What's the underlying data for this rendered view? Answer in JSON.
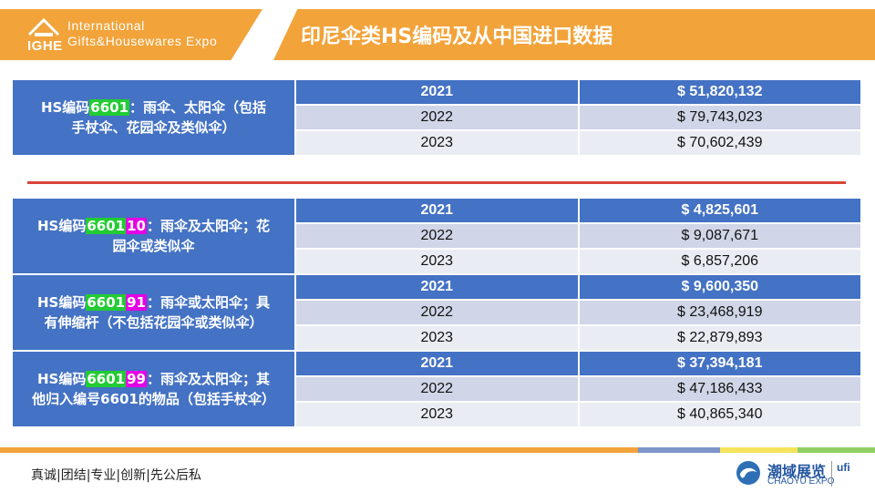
{
  "header": {
    "logo_abbr": "IGHE",
    "logo_line1": "International",
    "logo_line2": "Gifts&Housewares Expo",
    "title": "印尼伞类HS编码及从中国进口数据",
    "accent_color": "#f2a33a"
  },
  "groups": [
    {
      "desc_prefix": "HS编码",
      "code_green": "6601",
      "code_magenta": "",
      "desc_rest_line1": "：雨伞、太阳伞（包括",
      "desc_rest_line2": "手杖伞、花园伞及类似伞）",
      "rows": [
        {
          "year": "2021",
          "currency": "$",
          "amount": "51,820,132"
        },
        {
          "year": "2022",
          "currency": "$",
          "amount": "79,743,023"
        },
        {
          "year": "2023",
          "currency": "$",
          "amount": "70,602,439"
        }
      ]
    },
    {
      "desc_prefix": "HS编码",
      "code_green": "6601",
      "code_magenta": "10",
      "desc_rest_line1": "：雨伞及太阳伞；花",
      "desc_rest_line2": "园伞或类似伞",
      "rows": [
        {
          "year": "2021",
          "currency": "$",
          "amount": "4,825,601"
        },
        {
          "year": "2022",
          "currency": "$",
          "amount": "9,087,671"
        },
        {
          "year": "2023",
          "currency": "$",
          "amount": "6,857,206"
        }
      ]
    },
    {
      "desc_prefix": "HS编码",
      "code_green": "6601",
      "code_magenta": "91",
      "desc_rest_line1": "：雨伞或太阳伞；具",
      "desc_rest_line2": "有伸缩杆（不包括花园伞或类似伞）",
      "rows": [
        {
          "year": "2021",
          "currency": "$",
          "amount": "9,600,350"
        },
        {
          "year": "2022",
          "currency": "$",
          "amount": "23,468,919"
        },
        {
          "year": "2023",
          "currency": "$",
          "amount": "22,879,893"
        }
      ]
    },
    {
      "desc_prefix": "HS编码",
      "code_green": "6601",
      "code_magenta": "99",
      "desc_rest_line1": "：雨伞及太阳伞；其",
      "desc_rest_line2": "他归入编号6601的物品（包括手杖伞）",
      "rows": [
        {
          "year": "2021",
          "currency": "$",
          "amount": "37,394,181"
        },
        {
          "year": "2022",
          "currency": "$",
          "amount": "47,186,433"
        },
        {
          "year": "2023",
          "currency": "$",
          "amount": "40,865,340"
        }
      ]
    }
  ],
  "footer": {
    "motto": "真诚|团结|专业|创新|先公后私",
    "brand_cn": "潮域展览",
    "brand_en": "CHAOYU EXPO",
    "ufi": "ufi"
  }
}
